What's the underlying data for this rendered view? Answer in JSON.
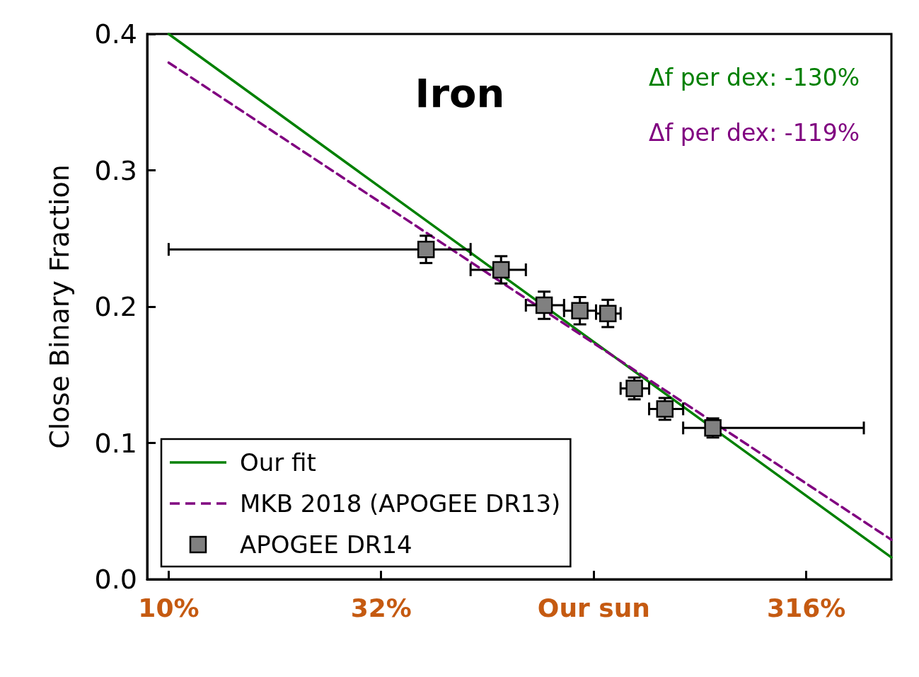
{
  "chart_data": {
    "type": "scatter",
    "title": "Iron",
    "ylabel": "Close Binary Fraction",
    "log": "x",
    "xlim": [
      8.9,
      501
    ],
    "xticks": [
      {
        "value": 10,
        "label": "10%"
      },
      {
        "value": 31.6,
        "label": "32%"
      },
      {
        "value": 100,
        "label": "Our sun"
      },
      {
        "value": 316,
        "label": "316%"
      }
    ],
    "ylim": [
      0,
      0.4
    ],
    "yticks": [
      {
        "value": 0,
        "label": "0.0"
      },
      0.1,
      0.2,
      0.3,
      0.4
    ],
    "marker": "square",
    "series": [
      {
        "name": "Our fit",
        "type": "line",
        "color": "#008000",
        "line_style": "solid",
        "marker": "none",
        "x": [
          10,
          501
        ],
        "values": [
          0.4,
          0.016
        ]
      },
      {
        "name": "MKB 2018 (APOGEE DR13)",
        "type": "line",
        "color": "#800080",
        "line_style": "dashed",
        "marker": "none",
        "x": [
          10,
          501
        ],
        "values": [
          0.379,
          0.029
        ]
      },
      {
        "name": "APOGEE DR14",
        "color": "#808080",
        "x": [
          40.3,
          60.5,
          76.4,
          92.7,
          107.9,
          124.5,
          146.9,
          190.5
        ],
        "values": [
          0.242,
          0.227,
          0.201,
          0.197,
          0.195,
          0.14,
          0.125,
          0.111
        ],
        "errors": [
          0.01,
          0.01,
          0.01,
          0.01,
          0.01,
          0.008,
          0.008,
          0.007
        ],
        "xerrors": [
          [
            10,
            51.3
          ],
          [
            51.3,
            69.2
          ],
          [
            69.2,
            85.1
          ],
          [
            85.1,
            101.2
          ],
          [
            101.2,
            115.6
          ],
          [
            115.6,
            134.9
          ],
          [
            134.9,
            162.2
          ],
          [
            162.2,
            431.5
          ]
        ]
      }
    ],
    "annotations": [
      "Δf per dex: -130%",
      "Δf per dex: -119%"
    ],
    "legend": "bottom left",
    "grid": false
  }
}
